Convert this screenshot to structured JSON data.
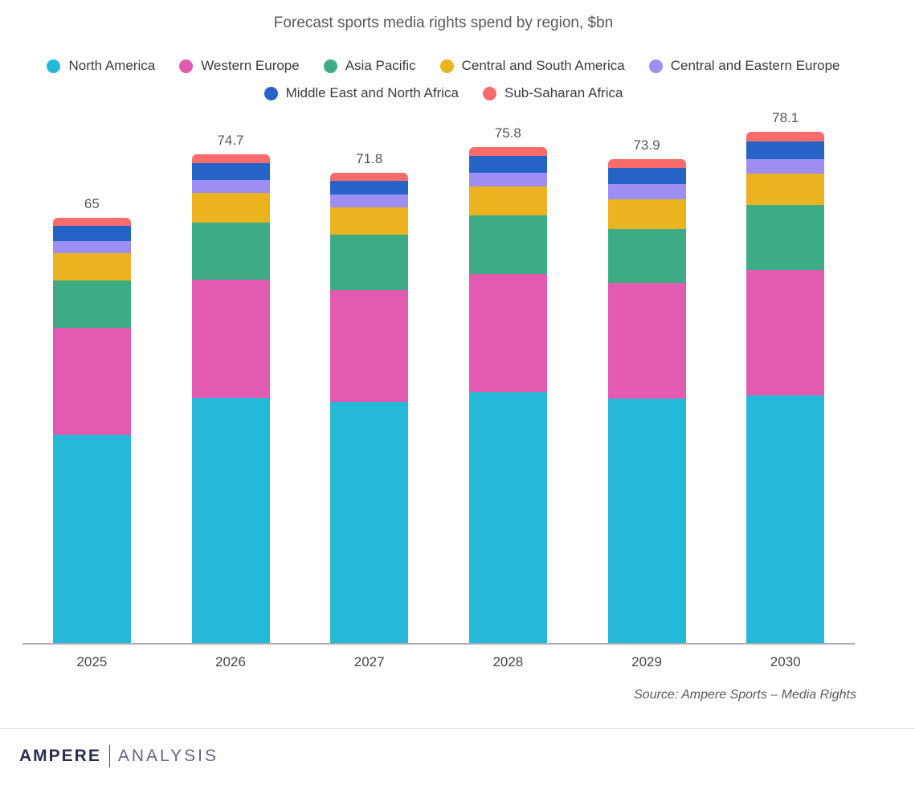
{
  "title": "Forecast sports media rights spend by region, $bn",
  "source_label": "Source:  Ampere Sports – Media Rights",
  "footer": {
    "brand": "AMPERE",
    "suffix": "ANALYSIS"
  },
  "chart_data": {
    "type": "bar",
    "stacked": true,
    "title": "Forecast sports media rights spend by region, $bn",
    "xlabel": "",
    "ylabel": "$bn",
    "grid": false,
    "legend_position": "top",
    "categories": [
      "2025",
      "2026",
      "2027",
      "2028",
      "2029",
      "2030"
    ],
    "totals": [
      65,
      74.7,
      71.8,
      75.8,
      73.9,
      78.1
    ],
    "series": [
      {
        "name": "North America",
        "color": "#26b8d9",
        "values": [
          31.8,
          37.5,
          36.8,
          38.3,
          37.3,
          37.8
        ]
      },
      {
        "name": "Western Europe",
        "color": "#e25bb1",
        "values": [
          16.3,
          18.0,
          17.1,
          18.1,
          17.7,
          19.2
        ]
      },
      {
        "name": "Asia Pacific",
        "color": "#3dac85",
        "values": [
          7.3,
          8.7,
          8.5,
          9.0,
          8.3,
          9.9
        ]
      },
      {
        "name": "Central and South America",
        "color": "#ecb321",
        "values": [
          4.2,
          4.6,
          4.2,
          4.4,
          4.5,
          4.8
        ]
      },
      {
        "name": "Central and Eastern Europe",
        "color": "#9c8ef2",
        "values": [
          1.8,
          2.0,
          2.0,
          2.1,
          2.3,
          2.2
        ]
      },
      {
        "name": "Middle East and North Africa",
        "color": "#2564c6",
        "values": [
          2.3,
          2.5,
          2.0,
          2.5,
          2.5,
          2.8
        ]
      },
      {
        "name": "Sub-Saharan Africa",
        "color": "#fa6b6b",
        "values": [
          1.3,
          1.4,
          1.2,
          1.4,
          1.3,
          1.4
        ]
      }
    ]
  }
}
